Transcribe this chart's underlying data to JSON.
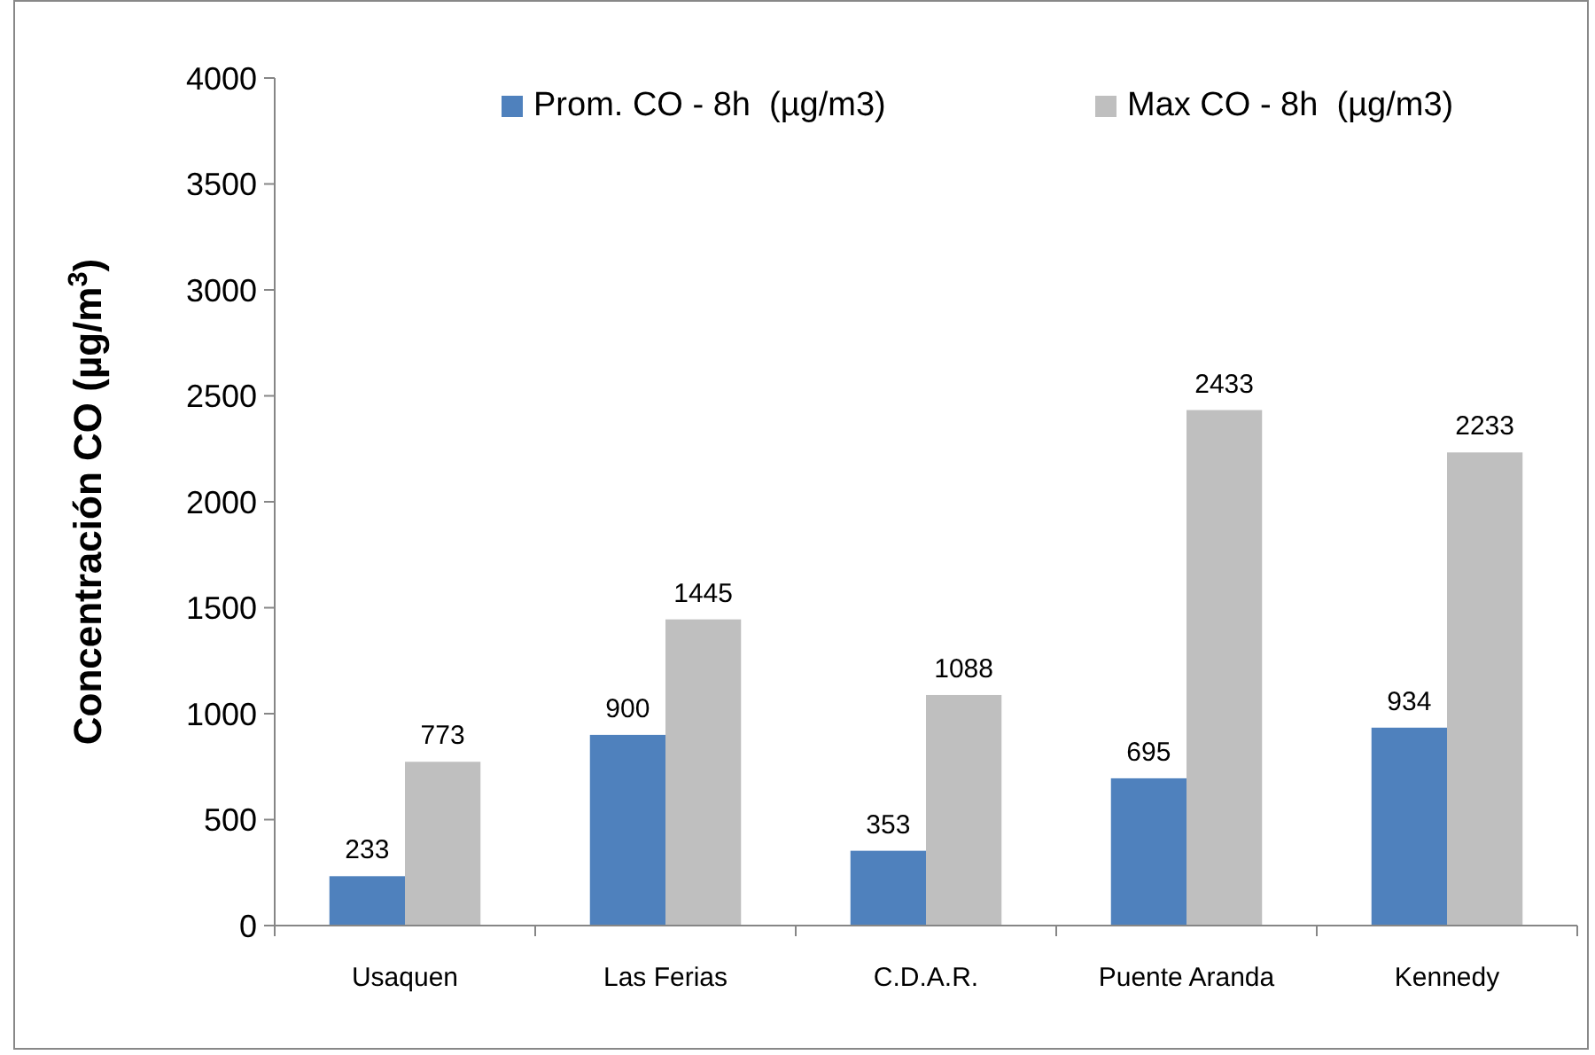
{
  "chart_data": {
    "type": "bar",
    "ylabel": "Concentración CO (µg/m$^{3}$)",
    "categories": [
      "Usaquen",
      "Las Ferias",
      "C.D.A.R.",
      "Puente Aranda",
      "Kennedy"
    ],
    "series": [
      {
        "name": "Prom. CO - 8h  (µg/m3)",
        "color": "#4f81bd",
        "values": [
          233,
          900,
          353,
          695,
          934
        ]
      },
      {
        "name": "Max CO - 8h  (µg/m3)",
        "color": "#bfbfbf",
        "values": [
          773,
          1445,
          1088,
          2433,
          2233
        ]
      }
    ],
    "ylim": [
      0,
      4000
    ],
    "yticks": [
      0,
      500,
      1000,
      1500,
      2000,
      2500,
      3000,
      3500,
      4000
    ],
    "grid": false,
    "legend": "top right",
    "data_labels": true
  }
}
